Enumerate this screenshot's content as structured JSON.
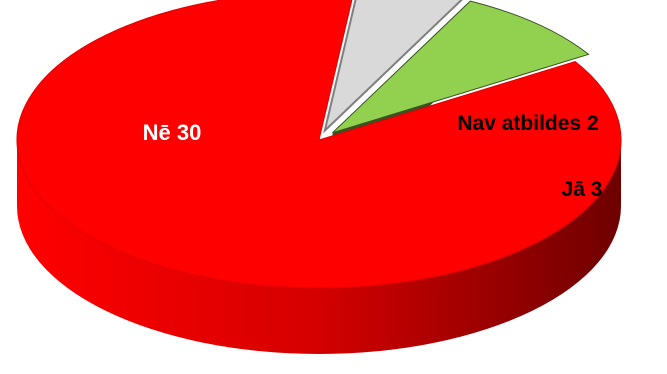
{
  "chart_data": {
    "type": "pie",
    "style": "3d-exploded",
    "title": "",
    "slices": [
      {
        "label": "Nē",
        "value": 30,
        "color": "#ff0000",
        "side_color": "#b30000",
        "text_color": "#ffffff"
      },
      {
        "label": "Nav atbildes",
        "value": 2,
        "color": "#d9d9d9",
        "side_color": "#7f7f7f",
        "text_color": "#000000"
      },
      {
        "label": "Jā",
        "value": 3,
        "color": "#92d050",
        "side_color": "#3b5323",
        "text_color": "#000000"
      }
    ]
  }
}
